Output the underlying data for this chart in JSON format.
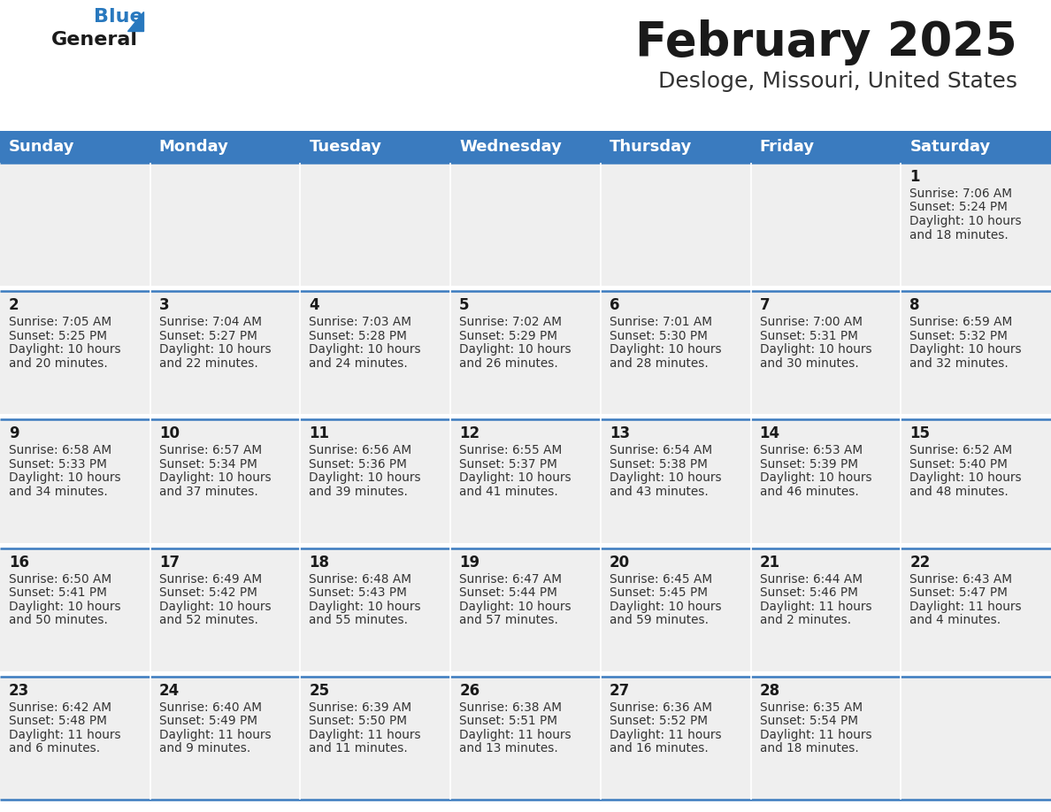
{
  "title": "February 2025",
  "subtitle": "Desloge, Missouri, United States",
  "header_bg": "#3a7bbf",
  "header_text_color": "#ffffff",
  "cell_bg": "#efefef",
  "cell_gap_bg": "#ffffff",
  "border_color": "#3a7bbf",
  "day_headers": [
    "Sunday",
    "Monday",
    "Tuesday",
    "Wednesday",
    "Thursday",
    "Friday",
    "Saturday"
  ],
  "title_color": "#1a1a1a",
  "subtitle_color": "#333333",
  "day_num_color": "#1a1a1a",
  "info_color": "#333333",
  "logo_text_color": "#1a1a1a",
  "logo_blue_color": "#2878be",
  "weeks": [
    [
      null,
      null,
      null,
      null,
      null,
      null,
      {
        "day": 1,
        "sunrise": "7:06 AM",
        "sunset": "5:24 PM",
        "daylight": "10 hours",
        "daylight2": "and 18 minutes."
      }
    ],
    [
      {
        "day": 2,
        "sunrise": "7:05 AM",
        "sunset": "5:25 PM",
        "daylight": "10 hours",
        "daylight2": "and 20 minutes."
      },
      {
        "day": 3,
        "sunrise": "7:04 AM",
        "sunset": "5:27 PM",
        "daylight": "10 hours",
        "daylight2": "and 22 minutes."
      },
      {
        "day": 4,
        "sunrise": "7:03 AM",
        "sunset": "5:28 PM",
        "daylight": "10 hours",
        "daylight2": "and 24 minutes."
      },
      {
        "day": 5,
        "sunrise": "7:02 AM",
        "sunset": "5:29 PM",
        "daylight": "10 hours",
        "daylight2": "and 26 minutes."
      },
      {
        "day": 6,
        "sunrise": "7:01 AM",
        "sunset": "5:30 PM",
        "daylight": "10 hours",
        "daylight2": "and 28 minutes."
      },
      {
        "day": 7,
        "sunrise": "7:00 AM",
        "sunset": "5:31 PM",
        "daylight": "10 hours",
        "daylight2": "and 30 minutes."
      },
      {
        "day": 8,
        "sunrise": "6:59 AM",
        "sunset": "5:32 PM",
        "daylight": "10 hours",
        "daylight2": "and 32 minutes."
      }
    ],
    [
      {
        "day": 9,
        "sunrise": "6:58 AM",
        "sunset": "5:33 PM",
        "daylight": "10 hours",
        "daylight2": "and 34 minutes."
      },
      {
        "day": 10,
        "sunrise": "6:57 AM",
        "sunset": "5:34 PM",
        "daylight": "10 hours",
        "daylight2": "and 37 minutes."
      },
      {
        "day": 11,
        "sunrise": "6:56 AM",
        "sunset": "5:36 PM",
        "daylight": "10 hours",
        "daylight2": "and 39 minutes."
      },
      {
        "day": 12,
        "sunrise": "6:55 AM",
        "sunset": "5:37 PM",
        "daylight": "10 hours",
        "daylight2": "and 41 minutes."
      },
      {
        "day": 13,
        "sunrise": "6:54 AM",
        "sunset": "5:38 PM",
        "daylight": "10 hours",
        "daylight2": "and 43 minutes."
      },
      {
        "day": 14,
        "sunrise": "6:53 AM",
        "sunset": "5:39 PM",
        "daylight": "10 hours",
        "daylight2": "and 46 minutes."
      },
      {
        "day": 15,
        "sunrise": "6:52 AM",
        "sunset": "5:40 PM",
        "daylight": "10 hours",
        "daylight2": "and 48 minutes."
      }
    ],
    [
      {
        "day": 16,
        "sunrise": "6:50 AM",
        "sunset": "5:41 PM",
        "daylight": "10 hours",
        "daylight2": "and 50 minutes."
      },
      {
        "day": 17,
        "sunrise": "6:49 AM",
        "sunset": "5:42 PM",
        "daylight": "10 hours",
        "daylight2": "and 52 minutes."
      },
      {
        "day": 18,
        "sunrise": "6:48 AM",
        "sunset": "5:43 PM",
        "daylight": "10 hours",
        "daylight2": "and 55 minutes."
      },
      {
        "day": 19,
        "sunrise": "6:47 AM",
        "sunset": "5:44 PM",
        "daylight": "10 hours",
        "daylight2": "and 57 minutes."
      },
      {
        "day": 20,
        "sunrise": "6:45 AM",
        "sunset": "5:45 PM",
        "daylight": "10 hours",
        "daylight2": "and 59 minutes."
      },
      {
        "day": 21,
        "sunrise": "6:44 AM",
        "sunset": "5:46 PM",
        "daylight": "11 hours",
        "daylight2": "and 2 minutes."
      },
      {
        "day": 22,
        "sunrise": "6:43 AM",
        "sunset": "5:47 PM",
        "daylight": "11 hours",
        "daylight2": "and 4 minutes."
      }
    ],
    [
      {
        "day": 23,
        "sunrise": "6:42 AM",
        "sunset": "5:48 PM",
        "daylight": "11 hours",
        "daylight2": "and 6 minutes."
      },
      {
        "day": 24,
        "sunrise": "6:40 AM",
        "sunset": "5:49 PM",
        "daylight": "11 hours",
        "daylight2": "and 9 minutes."
      },
      {
        "day": 25,
        "sunrise": "6:39 AM",
        "sunset": "5:50 PM",
        "daylight": "11 hours",
        "daylight2": "and 11 minutes."
      },
      {
        "day": 26,
        "sunrise": "6:38 AM",
        "sunset": "5:51 PM",
        "daylight": "11 hours",
        "daylight2": "and 13 minutes."
      },
      {
        "day": 27,
        "sunrise": "6:36 AM",
        "sunset": "5:52 PM",
        "daylight": "11 hours",
        "daylight2": "and 16 minutes."
      },
      {
        "day": 28,
        "sunrise": "6:35 AM",
        "sunset": "5:54 PM",
        "daylight": "11 hours",
        "daylight2": "and 18 minutes."
      },
      null
    ]
  ],
  "fig_width": 11.88,
  "fig_height": 9.18,
  "dpi": 100
}
